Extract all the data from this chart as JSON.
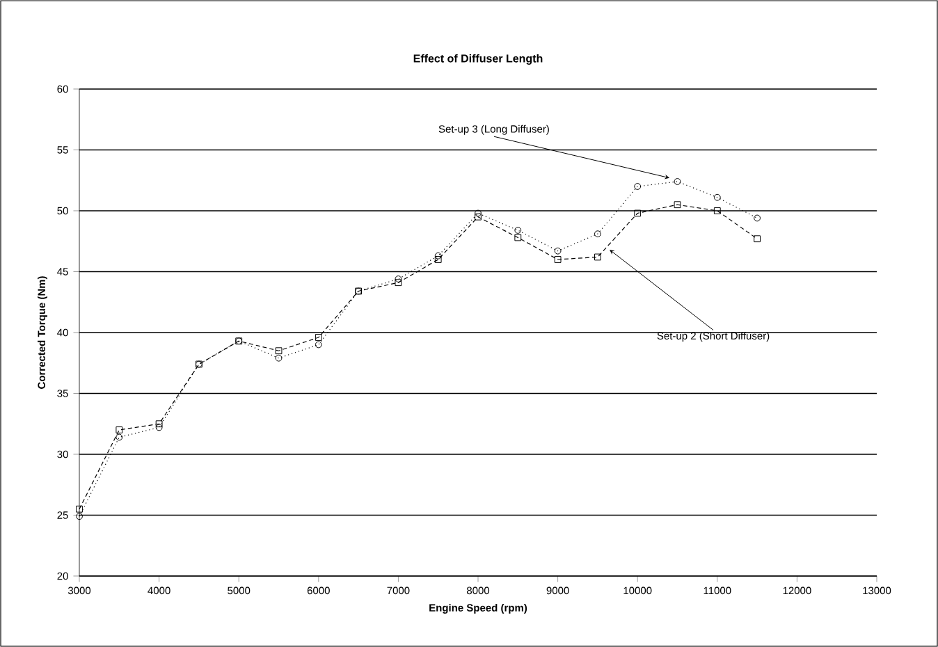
{
  "chart_data": {
    "type": "line",
    "title": "Effect of Diffuser Length",
    "xlabel": "Engine Speed (rpm)",
    "ylabel": "Corrected Torque (Nm)",
    "x": [
      3000,
      3500,
      4000,
      4500,
      5000,
      5500,
      6000,
      6500,
      7000,
      7500,
      8000,
      8500,
      9000,
      9500,
      10000,
      10500,
      11000,
      11500
    ],
    "series": [
      {
        "color": "#000000",
        "marker": "circle",
        "line_style": "dotted",
        "values": [
          24.9,
          31.4,
          32.2,
          37.4,
          39.3,
          37.9,
          39.0,
          43.4,
          44.4,
          46.3,
          49.8,
          48.4,
          46.7,
          48.1,
          52.0,
          52.4,
          51.1,
          49.4
        ]
      },
      {
        "color": "#000000",
        "marker": "square",
        "line_style": "dashed",
        "values": [
          25.5,
          32.0,
          32.5,
          37.4,
          39.3,
          38.5,
          39.6,
          43.4,
          44.1,
          46.0,
          49.5,
          47.8,
          46.0,
          46.2,
          49.8,
          50.5,
          50.0,
          47.7
        ]
      }
    ],
    "annotations": [
      {
        "text": "Set-up 3 (Long Diffuser)",
        "x": 10400,
        "y": 52.7
      },
      {
        "text": "Set-up 2 (Short Diffuser)",
        "x": 9650,
        "y": 46.8
      }
    ],
    "xlim": [
      3000,
      13000
    ],
    "xticks": [
      3000,
      4000,
      5000,
      6000,
      7000,
      8000,
      9000,
      10000,
      11000,
      12000,
      13000
    ],
    "ylim": [
      20,
      60
    ],
    "yticks": [
      20,
      25,
      30,
      35,
      40,
      45,
      50,
      55,
      60
    ],
    "grid": "y"
  }
}
